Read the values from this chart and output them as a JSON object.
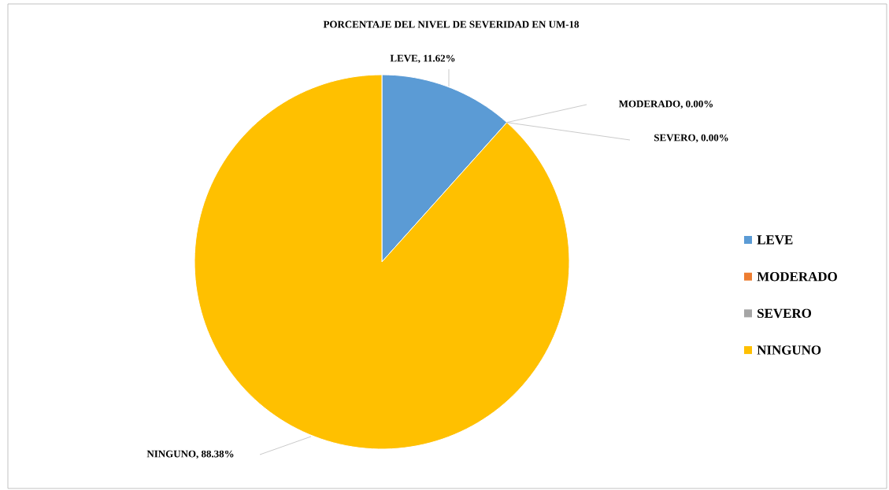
{
  "chart_data": {
    "type": "pie",
    "title": "PORCENTAJE  DEL NIVEL DE SEVERIDAD  EN UM-18",
    "categories": [
      "LEVE",
      "MODERADO",
      "SEVERO",
      "NINGUNO"
    ],
    "values": [
      11.62,
      0,
      0,
      88.38
    ],
    "value_labels": [
      "LEVE, 11.62%",
      "MODERADO, 0.00%",
      "SEVERO, 0.00%",
      "NINGUNO, 88.38%"
    ],
    "colors": [
      "#5b9bd5",
      "#ed7d31",
      "#a5a5a5",
      "#ffc000"
    ],
    "legend": "right"
  }
}
